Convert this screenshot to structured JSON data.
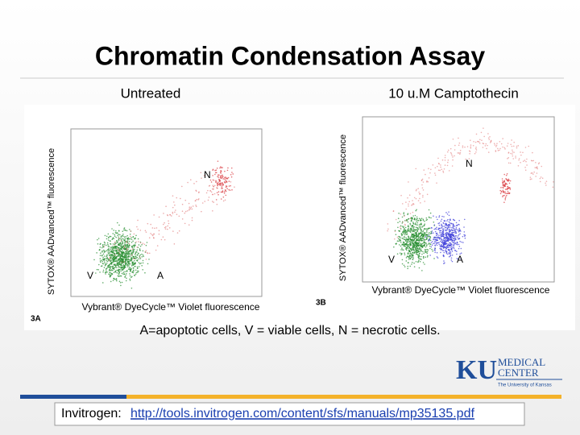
{
  "header": {
    "title": "Chromatin Condensation Assay"
  },
  "panels": [
    {
      "subtitle": "Untreated",
      "y_label": "SYTOX® AADvanced™ fluorescence",
      "x_label": "Vybrant® DyeCycle™ Violet fluorescence",
      "panel_label": "3A",
      "regions": [
        "N",
        "V",
        "A"
      ]
    },
    {
      "subtitle": "10 u.M Camptothecin",
      "y_label": "SYTOX® AADvanced™ fluorescence",
      "x_label": "Vybrant® DyeCycle™ Violet fluorescence",
      "panel_label": "3B",
      "regions": [
        "N",
        "V",
        "A"
      ]
    }
  ],
  "caption": "A=apoptotic cells, V = viable cells, N = necrotic cells.",
  "logo": {
    "mark": "KU",
    "line1": "MEDICAL",
    "line2": "CENTER",
    "line3": "The University of Kansas"
  },
  "footer": {
    "label": "Invitrogen:",
    "link": "http://tools.invitrogen.com/content/sfs/manuals/mp35135.pdf"
  }
}
